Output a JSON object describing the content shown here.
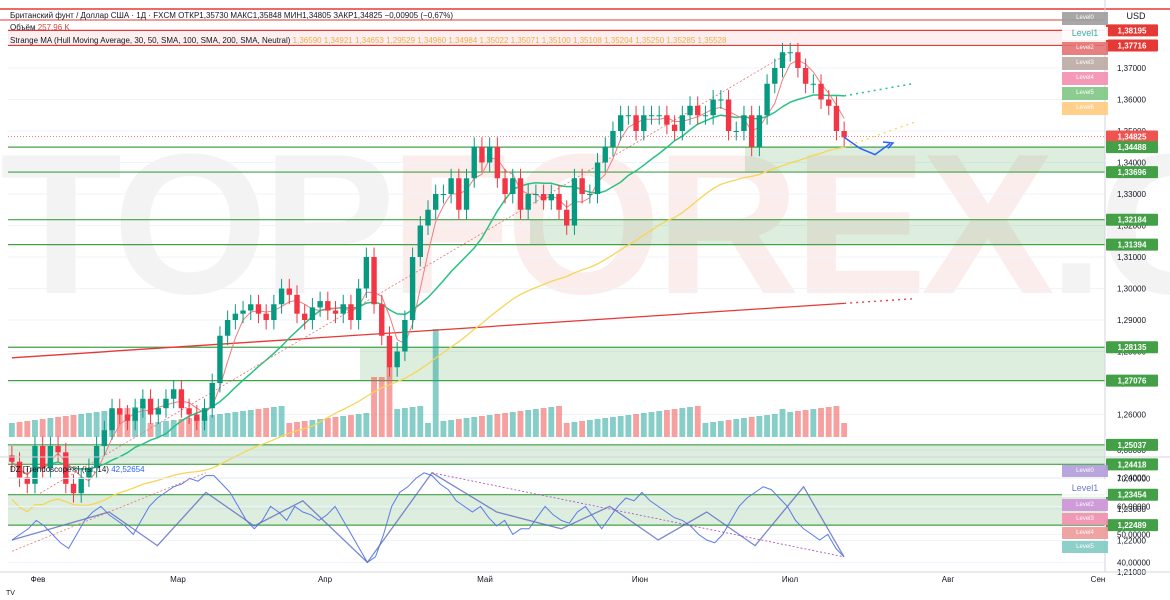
{
  "header": {
    "title_line": "Британский фунт / Доллар США · 1Д · FXCM  ОТКР1,35730  МАКС1,35848  МИН1,34805  ЗАКР1,34825  −0,00905 (−0,67%)",
    "volume_label": "Объём",
    "volume_value": "257,96 K",
    "ma_line": "Strange MA (Hull Moving Average, 30, 50, SMA, 100, SMA, 200, SMA, Neutral)",
    "ma_values": "1,36590  1,34921  1,34653  1,29529  1,34960  1,34984  1,35022  1,35071  1,35100  1,35108  1,35204  1,35250  1,35285  1,35528",
    "currency": "USD"
  },
  "watermark": {
    "part1": "TOP",
    "part2": "FOREX",
    "part3": ".COM"
  },
  "price_levels": [
    {
      "label": "1,38195",
      "value": 1.38195,
      "color": "#e53935"
    },
    {
      "label": "1,37716",
      "value": 1.37716,
      "color": "#e53935"
    },
    {
      "label": "1,34825",
      "value": 1.34825,
      "color": "#ef5350"
    },
    {
      "label": "1,34488",
      "value": 1.34488,
      "color": "#43a047"
    },
    {
      "label": "1,33696",
      "value": 1.33696,
      "color": "#43a047"
    },
    {
      "label": "1,32184",
      "value": 1.32184,
      "color": "#43a047"
    },
    {
      "label": "1,31394",
      "value": 1.31394,
      "color": "#43a047"
    },
    {
      "label": "1,28135",
      "value": 1.28135,
      "color": "#43a047"
    },
    {
      "label": "1,27076",
      "value": 1.27076,
      "color": "#43a047"
    },
    {
      "label": "1,25037",
      "value": 1.25037,
      "color": "#43a047"
    },
    {
      "label": "1,24418",
      "value": 1.24418,
      "color": "#43a047"
    },
    {
      "label": "1,23454",
      "value": 1.23454,
      "color": "#43a047"
    },
    {
      "label": "1,22489",
      "value": 1.22489,
      "color": "#43a047"
    }
  ],
  "level_legend": [
    {
      "label": "Level0",
      "color": "#9e9e9e"
    },
    {
      "label": "Level1",
      "color": "#ffffff"
    },
    {
      "label": "Level2",
      "color": "#e57373"
    },
    {
      "label": "Level3",
      "color": "#bcaaa4"
    },
    {
      "label": "Level4",
      "color": "#f48fb1"
    },
    {
      "label": "Level5",
      "color": "#81c784"
    },
    {
      "label": "Level6",
      "color": "#ffcc80"
    }
  ],
  "rsi_header": {
    "name": "DZ [Trendoscope®] (rsi, 14)",
    "value": "42,52654"
  },
  "rsi_legend": [
    {
      "label": "Level0",
      "color": "#b39ddb"
    },
    {
      "label": "Level1",
      "color": "#ffffff"
    },
    {
      "label": "Level2",
      "color": "#ce93d8"
    },
    {
      "label": "Level3",
      "color": "#f48fb1"
    },
    {
      "label": "Level4",
      "color": "#ef9a9a"
    },
    {
      "label": "Level5",
      "color": "#80cbc4"
    }
  ],
  "chart_data": [
    {
      "type": "candlestick",
      "title": "Британский фунт / Доллар США · 1Д · FXCM",
      "y_ticks": [
        "1,37000",
        "1,36000",
        "1,35000",
        "1,34000",
        "1,33000",
        "1,32000",
        "1,31000",
        "1,30000",
        "1,29000",
        "1,28000",
        "1,27000",
        "1,26000",
        "1,25000",
        "1,24000",
        "1,23000",
        "1,22000",
        "1,21000",
        "0,00000"
      ],
      "ylim": [
        1.21,
        1.385
      ],
      "x_ticks": [
        "Фев",
        "Мар",
        "Апр",
        "Май",
        "Июн",
        "Июл",
        "Авг",
        "Сен"
      ],
      "series_close": [
        1.245,
        1.24,
        1.238,
        1.25,
        1.243,
        1.25,
        1.248,
        1.238,
        1.235,
        1.24,
        1.243,
        1.25,
        1.255,
        1.262,
        1.26,
        1.258,
        1.262,
        1.265,
        1.26,
        1.262,
        1.265,
        1.268,
        1.262,
        1.26,
        1.258,
        1.262,
        1.27,
        1.285,
        1.29,
        1.292,
        1.293,
        1.295,
        1.292,
        1.29,
        1.295,
        1.3,
        1.298,
        1.292,
        1.29,
        1.294,
        1.296,
        1.293,
        1.292,
        1.295,
        1.29,
        1.3,
        1.31,
        1.295,
        1.285,
        1.275,
        1.28,
        1.29,
        1.31,
        1.32,
        1.325,
        1.33,
        1.33,
        1.335,
        1.325,
        1.335,
        1.345,
        1.34,
        1.345,
        1.335,
        1.33,
        1.335,
        1.325,
        1.33,
        1.33,
        1.328,
        1.33,
        1.325,
        1.32,
        1.335,
        1.33,
        1.33,
        1.34,
        1.345,
        1.35,
        1.355,
        1.355,
        1.35,
        1.355,
        1.355,
        1.355,
        1.352,
        1.35,
        1.355,
        1.358,
        1.355,
        1.355,
        1.36,
        1.36,
        1.35,
        1.35,
        1.355,
        1.345,
        1.355,
        1.365,
        1.37,
        1.375,
        1.375,
        1.37,
        1.365,
        1.365,
        1.36,
        1.358,
        1.35,
        1.348
      ],
      "volume_max": 200,
      "moving_averages": [
        {
          "name": "SMA 200",
          "color": "#e53935"
        },
        {
          "name": "SMA 100",
          "color": "#f6d656"
        },
        {
          "name": "SMA 50",
          "color": "#26c281"
        },
        {
          "name": "Hull MA",
          "color": "#ef7e7e"
        }
      ]
    },
    {
      "type": "line",
      "title": "DZ [Trendoscope®] (rsi, 14)",
      "y_ticks": [
        "70,00000",
        "60,00000",
        "50,00000",
        "40,00000"
      ],
      "ylim": [
        38,
        73
      ],
      "values": [
        48,
        50,
        52,
        55,
        53,
        50,
        47,
        45,
        50,
        55,
        58,
        60,
        57,
        55,
        53,
        50,
        55,
        60,
        63,
        65,
        67,
        68,
        70,
        69,
        71,
        71,
        68,
        65,
        60,
        55,
        52,
        55,
        60,
        58,
        55,
        60,
        58,
        57,
        55,
        57,
        60,
        55,
        50,
        45,
        40,
        42,
        50,
        60,
        65,
        67,
        70,
        72,
        71,
        68,
        66,
        62,
        60,
        58,
        60,
        56,
        53,
        55,
        50,
        52,
        52,
        56,
        60,
        57,
        55,
        54,
        58,
        60,
        56,
        52,
        56,
        60,
        63,
        62,
        65,
        62,
        60,
        58,
        56,
        55,
        53,
        50,
        48,
        47,
        50,
        55,
        60,
        63,
        65,
        67,
        66,
        63,
        60,
        55,
        52,
        50,
        48,
        50,
        45,
        42
      ]
    }
  ]
}
